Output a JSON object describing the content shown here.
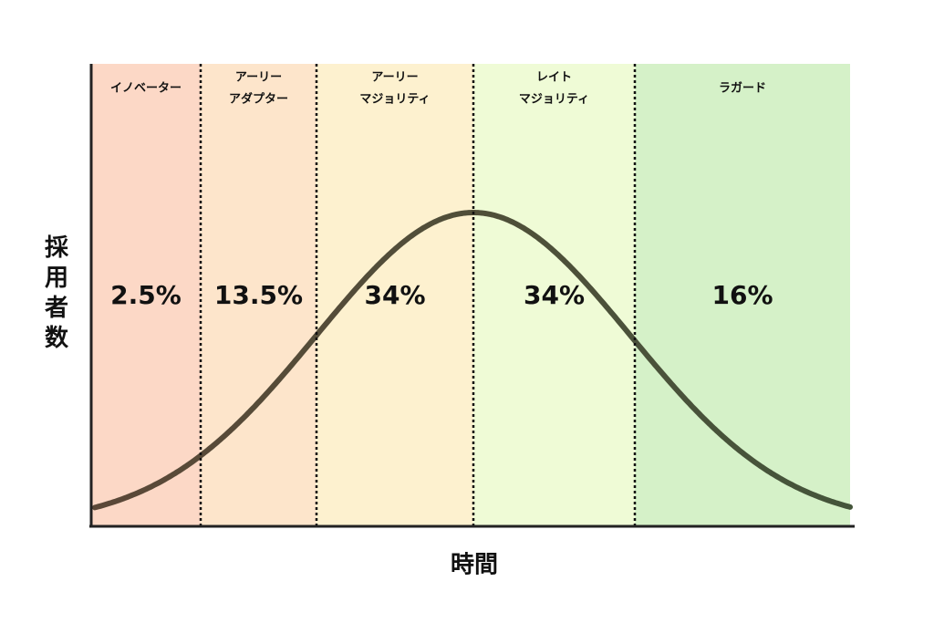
{
  "y_axis_label": "採用者数",
  "x_axis_label": "時間",
  "segments": [
    {
      "name": [
        "イノベーター"
      ],
      "share": "2.5%"
    },
    {
      "name": [
        "アーリー",
        "アダプター"
      ],
      "share": "13.5%"
    },
    {
      "name": [
        "アーリー",
        "マジョリティ"
      ],
      "share": "34%"
    },
    {
      "name": [
        "レイト",
        "マジョリティ"
      ],
      "share": "34%"
    },
    {
      "name": [
        "ラガード"
      ],
      "share": "16%"
    }
  ]
}
